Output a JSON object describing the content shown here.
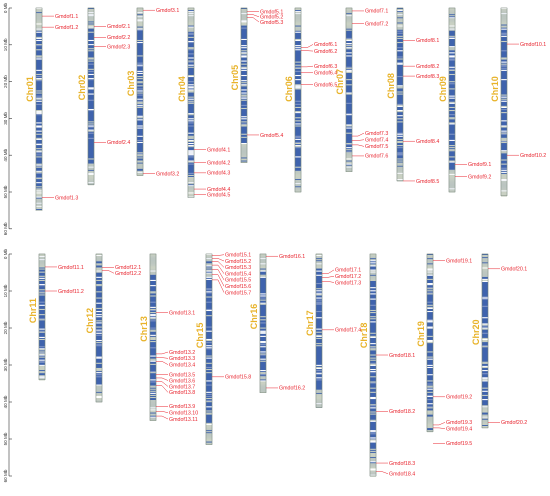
{
  "colors": {
    "chromosome_fill": "#3f63ad",
    "chromosome_light": "#c9d0c3",
    "chromosome_white": "#ffffff",
    "gene_label": "#e8242e",
    "connector": "#e8242e",
    "chromosome_label": "#e8b32a",
    "axis": "#333333"
  },
  "panels": [
    {
      "axis": {
        "unit": "Mb",
        "ticks": [
          0,
          10,
          20,
          30,
          40,
          50,
          60
        ],
        "tick_labels": [
          "0 Mb",
          "10 Mb",
          "20 Mb",
          "30 Mb",
          "40 Mb",
          "50 Mb",
          "60 Mb"
        ]
      },
      "chromosomes": [
        {
          "name": "Chr01",
          "length": 55,
          "genes": [
            {
              "name": "Gmdof1.1",
              "pos": 2.2,
              "label_pos": 2.2
            },
            {
              "name": "Gmdof1.2",
              "pos": 5.2,
              "label_pos": 5.2
            },
            {
              "name": "Gmdof1.3",
              "pos": 51.5,
              "label_pos": 51.5
            }
          ]
        },
        {
          "name": "Chr02",
          "length": 48,
          "genes": [
            {
              "name": "Gmdof2.1",
              "pos": 5.0,
              "label_pos": 5.0
            },
            {
              "name": "Gmdof2.2",
              "pos": 8.0,
              "label_pos": 8.0
            },
            {
              "name": "Gmdof2.3",
              "pos": 10.5,
              "label_pos": 10.5
            },
            {
              "name": "Gmdof2.4",
              "pos": 36.5,
              "label_pos": 36.5
            }
          ]
        },
        {
          "name": "Chr03",
          "length": 45.5,
          "genes": [
            {
              "name": "Gmdof3.1",
              "pos": 0.6,
              "label_pos": 0.6
            },
            {
              "name": "Gmdof3.2",
              "pos": 45.0,
              "label_pos": 45.0
            }
          ]
        },
        {
          "name": "Chr04",
          "length": 51.5,
          "genes": [
            {
              "name": "Gmdof4.1",
              "pos": 38.5,
              "label_pos": 38.5
            },
            {
              "name": "Gmdof4.2",
              "pos": 42.0,
              "label_pos": 42.0
            },
            {
              "name": "Gmdof4.3",
              "pos": 44.8,
              "label_pos": 44.8
            },
            {
              "name": "Gmdof4.4",
              "pos": 49.2,
              "label_pos": 49.2
            },
            {
              "name": "Gmdof4.5",
              "pos": 50.7,
              "label_pos": 50.7
            }
          ]
        },
        {
          "name": "Chr05",
          "length": 42,
          "genes": [
            {
              "name": "Gmdof5.1",
              "pos": 1.0,
              "label_pos": 1.0
            },
            {
              "name": "Gmdof5.2",
              "pos": 1.8,
              "label_pos": 2.4
            },
            {
              "name": "Gmdof5.3",
              "pos": 2.6,
              "label_pos": 3.8
            },
            {
              "name": "Gmdof5.4",
              "pos": 34.5,
              "label_pos": 34.5
            }
          ]
        },
        {
          "name": "Chr06",
          "length": 50,
          "genes": [
            {
              "name": "Gmdof6.1",
              "pos": 10.8,
              "label_pos": 9.9
            },
            {
              "name": "Gmdof6.2",
              "pos": 11.6,
              "label_pos": 11.7
            },
            {
              "name": "Gmdof6.3",
              "pos": 16.0,
              "label_pos": 15.8
            },
            {
              "name": "Gmdof6.4",
              "pos": 17.6,
              "label_pos": 17.6
            },
            {
              "name": "Gmdof6.5",
              "pos": 20.8,
              "label_pos": 20.8
            }
          ]
        },
        {
          "name": "Chr07",
          "length": 44.5,
          "genes": [
            {
              "name": "Gmdof7.1",
              "pos": 0.8,
              "label_pos": 0.8
            },
            {
              "name": "Gmdof7.2",
              "pos": 4.2,
              "label_pos": 4.2
            },
            {
              "name": "Gmdof7.3",
              "pos": 34.8,
              "label_pos": 34.0
            },
            {
              "name": "Gmdof7.4",
              "pos": 36.0,
              "label_pos": 35.8
            },
            {
              "name": "Gmdof7.5",
              "pos": 37.2,
              "label_pos": 37.6
            },
            {
              "name": "Gmdof7.6",
              "pos": 40.2,
              "label_pos": 40.2
            }
          ]
        },
        {
          "name": "Chr08",
          "length": 47,
          "genes": [
            {
              "name": "Gmdof8.1",
              "pos": 8.8,
              "label_pos": 8.8
            },
            {
              "name": "Gmdof8.2",
              "pos": 15.8,
              "label_pos": 15.8
            },
            {
              "name": "Gmdof8.3",
              "pos": 18.5,
              "label_pos": 18.5
            },
            {
              "name": "Gmdof8.4",
              "pos": 36.2,
              "label_pos": 36.2
            },
            {
              "name": "Gmdof8.5",
              "pos": 47.0,
              "label_pos": 47.0
            }
          ]
        },
        {
          "name": "Chr09",
          "length": 50,
          "genes": [
            {
              "name": "Gmdof9.1",
              "pos": 42.5,
              "label_pos": 42.5
            },
            {
              "name": "Gmdof9.2",
              "pos": 45.8,
              "label_pos": 45.8
            }
          ]
        },
        {
          "name": "Chr10",
          "length": 51,
          "genes": [
            {
              "name": "Gmdof10.1",
              "pos": 9.8,
              "label_pos": 9.8
            },
            {
              "name": "Gmdof10.2",
              "pos": 40.0,
              "label_pos": 40.0
            }
          ]
        }
      ]
    },
    {
      "axis": {
        "unit": "Mb",
        "ticks": [
          0,
          10,
          20,
          30,
          40,
          50,
          60
        ],
        "tick_labels": [
          "0 Mb",
          "10 Mb",
          "20 Mb",
          "30 Mb",
          "40 Mb",
          "50 Mb",
          "60 Mb"
        ]
      },
      "chromosomes": [
        {
          "name": "Chr11",
          "length": 34,
          "genes": [
            {
              "name": "Gmdof11.1",
              "pos": 3.5,
              "label_pos": 3.5
            },
            {
              "name": "Gmdof11.2",
              "pos": 10.0,
              "label_pos": 10.0
            }
          ]
        },
        {
          "name": "Chr12",
          "length": 40,
          "genes": [
            {
              "name": "Gmdof12.1",
              "pos": 3.6,
              "label_pos": 3.6
            },
            {
              "name": "Gmdof12.2",
              "pos": 4.4,
              "label_pos": 5.2
            }
          ]
        },
        {
          "name": "Chr13",
          "length": 45,
          "genes": [
            {
              "name": "Gmdof13.1",
              "pos": 15.8,
              "label_pos": 15.8
            },
            {
              "name": "Gmdof13.2",
              "pos": 27.0,
              "label_pos": 26.5
            },
            {
              "name": "Gmdof13.3",
              "pos": 28.0,
              "label_pos": 28.2
            },
            {
              "name": "Gmdof13.4",
              "pos": 29.0,
              "label_pos": 29.9
            },
            {
              "name": "Gmdof13.5",
              "pos": 32.6,
              "label_pos": 32.6
            },
            {
              "name": "Gmdof13.6",
              "pos": 33.5,
              "label_pos": 34.2
            },
            {
              "name": "Gmdof13.7",
              "pos": 34.5,
              "label_pos": 35.8
            },
            {
              "name": "Gmdof13.8",
              "pos": 35.6,
              "label_pos": 37.4
            },
            {
              "name": "Gmdof13.9",
              "pos": 41.2,
              "label_pos": 41.2
            },
            {
              "name": "Gmdof13.10",
              "pos": 42.5,
              "label_pos": 42.9
            },
            {
              "name": "Gmdof13.11",
              "pos": 43.8,
              "label_pos": 44.6
            }
          ]
        },
        {
          "name": "Chr15",
          "length": 51.5,
          "genes": [
            {
              "name": "Gmdof15.1",
              "pos": 0.4,
              "label_pos": 0.2
            },
            {
              "name": "Gmdof15.2",
              "pos": 1.2,
              "label_pos": 1.9
            },
            {
              "name": "Gmdof15.3",
              "pos": 2.0,
              "label_pos": 3.6
            },
            {
              "name": "Gmdof15.4",
              "pos": 3.0,
              "label_pos": 5.3
            },
            {
              "name": "Gmdof15.5",
              "pos": 4.2,
              "label_pos": 7.0
            },
            {
              "name": "Gmdof15.6",
              "pos": 5.6,
              "label_pos": 8.7
            },
            {
              "name": "Gmdof15.7",
              "pos": 7.0,
              "label_pos": 10.4
            },
            {
              "name": "Gmdof15.8",
              "pos": 33.2,
              "label_pos": 33.2
            }
          ]
        },
        {
          "name": "Chr16",
          "length": 37.5,
          "genes": [
            {
              "name": "Gmdof16.1",
              "pos": 0.6,
              "label_pos": 0.6
            },
            {
              "name": "Gmdof16.2",
              "pos": 36.2,
              "label_pos": 36.2
            }
          ]
        },
        {
          "name": "Chr17",
          "length": 41.5,
          "genes": [
            {
              "name": "Gmdof17.1",
              "pos": 5.3,
              "label_pos": 4.3
            },
            {
              "name": "Gmdof17.2",
              "pos": 6.3,
              "label_pos": 6.0
            },
            {
              "name": "Gmdof17.3",
              "pos": 7.4,
              "label_pos": 7.7
            },
            {
              "name": "Gmdof17.4",
              "pos": 20.5,
              "label_pos": 20.5
            }
          ]
        },
        {
          "name": "Chr18",
          "length": 60,
          "genes": [
            {
              "name": "Gmdof18.1",
              "pos": 27.3,
              "label_pos": 27.3
            },
            {
              "name": "Gmdof18.2",
              "pos": 42.5,
              "label_pos": 42.5
            },
            {
              "name": "Gmdof18.3",
              "pos": 56.5,
              "label_pos": 56.5
            },
            {
              "name": "Gmdof18.4",
              "pos": 58.8,
              "label_pos": 59.4
            }
          ]
        },
        {
          "name": "Chr19",
          "length": 48,
          "genes": [
            {
              "name": "Gmdof19.1",
              "pos": 1.8,
              "label_pos": 1.8
            },
            {
              "name": "Gmdof19.2",
              "pos": 38.6,
              "label_pos": 38.6
            },
            {
              "name": "Gmdof19.3",
              "pos": 46.2,
              "label_pos": 45.5
            },
            {
              "name": "Gmdof19.4",
              "pos": 47.0,
              "label_pos": 47.2
            },
            {
              "name": "Gmdof19.5",
              "pos": 51.2,
              "label_pos": 51.2
            }
          ]
        },
        {
          "name": "Chr20",
          "length": 47,
          "genes": [
            {
              "name": "Gmdof20.1",
              "pos": 4.0,
              "label_pos": 4.0
            },
            {
              "name": "Gmdof20.2",
              "pos": 45.5,
              "label_pos": 45.5
            }
          ]
        }
      ]
    }
  ]
}
